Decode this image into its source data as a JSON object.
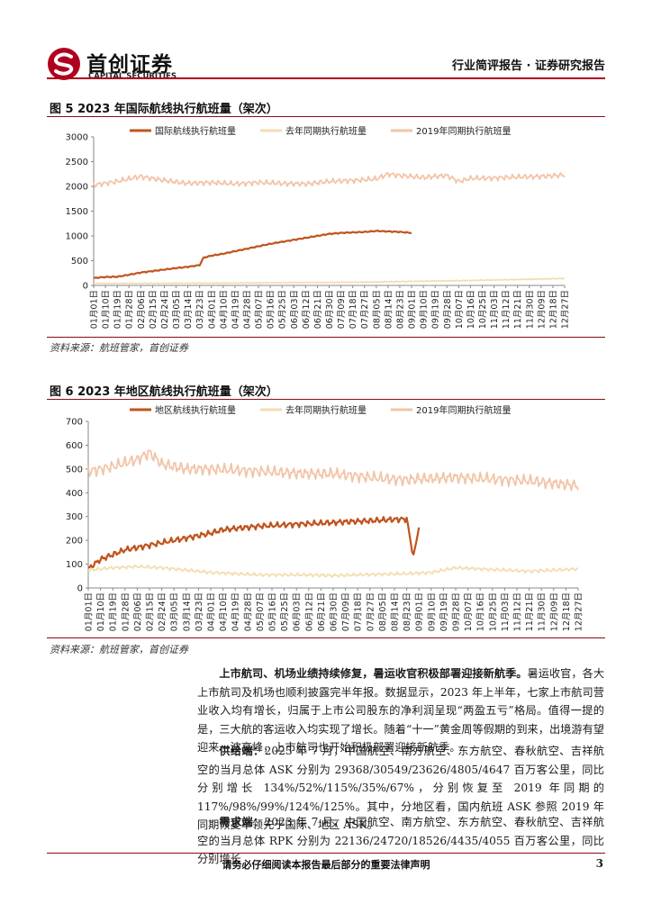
{
  "header": {
    "company_cn": "首创证券",
    "company_en": "CAPITAL SECURITIES",
    "report_type": "行业简评报告 · 证券研究报告"
  },
  "colors": {
    "brand": "#b0001e",
    "series1": "#c0541d",
    "series2": "#f3ddb2",
    "series3": "#f2c4a8"
  },
  "date_labels": [
    "01月01日",
    "01月10日",
    "01月19日",
    "01月28日",
    "02月06日",
    "02月15日",
    "02月24日",
    "03月05日",
    "03月14日",
    "03月23日",
    "04月01日",
    "04月10日",
    "04月19日",
    "04月28日",
    "05月07日",
    "05月16日",
    "05月25日",
    "06月03日",
    "06月12日",
    "06月21日",
    "06月30日",
    "07月09日",
    "07月18日",
    "07月27日",
    "08月05日",
    "08月14日",
    "08月23日",
    "09月01日",
    "09月10日",
    "09月19日",
    "09月28日",
    "10月07日",
    "10月16日",
    "10月25日",
    "11月03日",
    "11月12日",
    "11月21日",
    "11月30日",
    "12月09日",
    "12月18日",
    "12月27日"
  ],
  "chart_data": [
    {
      "type": "line",
      "title": "图 5 2023 年国际航线执行航班量（架次）",
      "ylim": [
        0,
        3000
      ],
      "yticks": [
        0,
        500,
        1000,
        1500,
        2000,
        2500,
        3000
      ],
      "legend_position": "top",
      "x_start": "01月01日",
      "series": [
        {
          "name": "国际航线执行航班量",
          "color": "#c0541d",
          "x": [
            "01月01日",
            "01月10日",
            "01月19日",
            "01月28日",
            "02月06日",
            "02月15日",
            "02月24日",
            "03月05日",
            "03月14日",
            "03月23日",
            "03月26日",
            "04月01日",
            "04月10日",
            "04月19日",
            "04月28日",
            "05月07日",
            "05月16日",
            "05月25日",
            "06月03日",
            "06月12日",
            "06月21日",
            "06月30日",
            "07月09日",
            "07月18日",
            "07月27日",
            "08月05日",
            "08月14日",
            "08月23日",
            "09月01日"
          ],
          "values": [
            150,
            170,
            175,
            215,
            260,
            290,
            320,
            350,
            375,
            410,
            560,
            600,
            640,
            690,
            740,
            790,
            840,
            880,
            920,
            960,
            1000,
            1040,
            1060,
            1070,
            1080,
            1100,
            1090,
            1080,
            1060
          ]
        },
        {
          "name": "去年同期执行航班量",
          "color": "#f3ddb2",
          "x": [
            "01月01日",
            "02月06日",
            "03月14日",
            "04月19日",
            "05月25日",
            "06月30日",
            "08月05日",
            "09月10日",
            "10月16日",
            "11月21日",
            "12月27日"
          ],
          "values": [
            40,
            42,
            45,
            48,
            55,
            60,
            70,
            85,
            100,
            120,
            140
          ]
        },
        {
          "name": "2019年同期执行航班量",
          "color": "#f2c4a8",
          "x": [
            "01月01日",
            "01月19日",
            "02月06日",
            "02月24日",
            "03月14日",
            "04月01日",
            "04月19日",
            "05月07日",
            "05月25日",
            "06月12日",
            "06月30日",
            "07月18日",
            "08月05日",
            "08月14日",
            "08月23日",
            "09月10日",
            "09月28日",
            "10月07日",
            "10月16日",
            "11月03日",
            "11月21日",
            "12月09日",
            "12月27日"
          ],
          "values": [
            2030,
            2100,
            2200,
            2120,
            2060,
            2080,
            2050,
            2080,
            2060,
            2050,
            2100,
            2120,
            2150,
            2250,
            2220,
            2180,
            2220,
            2100,
            2160,
            2170,
            2190,
            2200,
            2230
          ]
        }
      ]
    },
    {
      "type": "line",
      "title": "图 6 2023 年地区航线执行航班量（架次）",
      "ylim": [
        0,
        700
      ],
      "yticks": [
        0,
        100,
        200,
        300,
        400,
        500,
        600,
        700
      ],
      "legend_position": "top",
      "x_start": "01月01日",
      "series": [
        {
          "name": "地区航线执行航班量",
          "color": "#c0541d",
          "x": [
            "01月01日",
            "01月10日",
            "01月19日",
            "01月28日",
            "02月06日",
            "02月15日",
            "02月24日",
            "03月05日",
            "03月14日",
            "03月23日",
            "04月01日",
            "04月10日",
            "04月19日",
            "04月28日",
            "05月07日",
            "05月16日",
            "05月25日",
            "06月03日",
            "06月12日",
            "06月21日",
            "06月30日",
            "07月09日",
            "07月18日",
            "07月27日",
            "08月05日",
            "08月14日",
            "08月23日",
            "08月28日",
            "09月01日"
          ],
          "values": [
            80,
            120,
            140,
            160,
            170,
            180,
            190,
            200,
            210,
            220,
            230,
            245,
            250,
            255,
            260,
            262,
            265,
            268,
            270,
            272,
            275,
            278,
            280,
            282,
            285,
            288,
            290,
            130,
            260
          ]
        },
        {
          "name": "去年同期执行航班量",
          "color": "#f3ddb2",
          "x": [
            "01月01日",
            "01月19日",
            "02月06日",
            "02月24日",
            "03月14日",
            "04月01日",
            "04月19日",
            "05月07日",
            "05月25日",
            "06月12日",
            "06月30日",
            "07月18日",
            "08月05日",
            "08月23日",
            "09月10日",
            "09月28日",
            "10月16日",
            "11月03日",
            "11月21日",
            "12月09日",
            "12月27日"
          ],
          "values": [
            75,
            85,
            90,
            85,
            75,
            65,
            60,
            55,
            55,
            55,
            52,
            55,
            58,
            60,
            65,
            85,
            80,
            75,
            70,
            75,
            80
          ]
        },
        {
          "name": "2019年同期执行航班量",
          "color": "#f2c4a8",
          "x": [
            "01月01日",
            "01月19日",
            "02月06日",
            "02月15日",
            "02月24日",
            "03月14日",
            "04月01日",
            "04月19日",
            "05月07日",
            "05月25日",
            "06月12日",
            "06月30日",
            "07月18日",
            "08月05日",
            "08月23日",
            "09月10日",
            "09月28日",
            "10月16日",
            "11月03日",
            "11月21日",
            "12月09日",
            "12月27日"
          ],
          "values": [
            490,
            510,
            540,
            570,
            520,
            500,
            500,
            495,
            490,
            485,
            480,
            480,
            470,
            460,
            455,
            460,
            465,
            460,
            455,
            450,
            440,
            430
          ]
        }
      ]
    }
  ],
  "source_label": "资料来源：航班管家，首创证券",
  "paragraphs": [
    {
      "lead": "上市航司、机场业绩持续修复，暑运收官积极部署迎接新航季。",
      "text": "暑运收官，各大上市航司及机场也顺利披露完半年报。数据显示，2023 年上半年，七家上市航司营业收入均有增长，归属于上市公司股东的净利润呈现“两盈五亏”格局。值得一提的是，三大航的客运收入均实现了增长。随着“十一”黄金周等假期的到来，出境游有望迎来一波高峰，上市航司也开始积极部署迎接新航季。"
    },
    {
      "lead": "供给端：",
      "text": "2023 年 7 月，中国航空、南方航空、东方航空、春秋航空、吉祥航空的当月总体 ASK 分别为 29368/30549/23626/4805/4647 百万客公里，同比分别增长 134%/52%/115%/35%/67%，分别恢复至 2019 年同期的 117%/98%/99%/124%/125%。其中，分地区看，国内航班 ASK 参照 2019 年同期恢复率领先于国际、地区 ASK。"
    },
    {
      "lead": "需求端：",
      "text": "2023 年 7 月，中国航空、南方航空、东方航空、春秋航空、吉祥航空的当月总体 RPK 分别为 22136/24720/18526/4435/4055 百万客公里，同比分别增长"
    }
  ],
  "footer": {
    "disclaimer": "请务必仔细阅读本报告最后部分的重要法律声明",
    "page": "3"
  }
}
